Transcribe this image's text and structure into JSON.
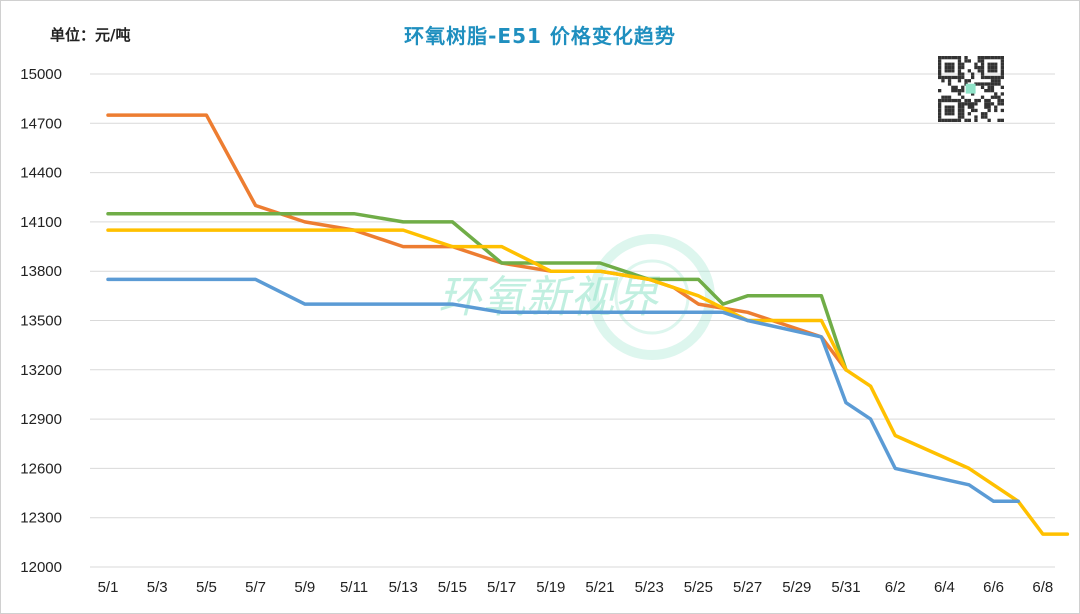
{
  "chart_data": {
    "type": "line",
    "title": "环氧树脂-E51 价格变化趋势",
    "unit_label": "单位：元/吨",
    "ylim": [
      12000,
      15000
    ],
    "yticks": [
      12000,
      12300,
      12600,
      12900,
      13200,
      13500,
      13800,
      14100,
      14400,
      14700,
      15000
    ],
    "x_tick_labels": [
      "5/1",
      "5/3",
      "5/5",
      "5/7",
      "5/9",
      "5/11",
      "5/13",
      "5/15",
      "5/17",
      "5/19",
      "5/21",
      "5/23",
      "5/25",
      "5/27",
      "5/29",
      "5/31",
      "6/2",
      "6/4",
      "6/6",
      "6/8"
    ],
    "grid": "horizontal",
    "legend": "none",
    "watermark": "环氧新视界",
    "series": [
      {
        "color": "#ed7d31",
        "points": [
          [
            "5/1",
            14750
          ],
          [
            "5/5",
            14750
          ],
          [
            "5/7",
            14200
          ],
          [
            "5/9",
            14100
          ],
          [
            "5/11",
            14050
          ],
          [
            "5/13",
            13950
          ],
          [
            "5/15",
            13950
          ],
          [
            "5/17",
            13850
          ],
          [
            "5/19",
            13800
          ],
          [
            "5/21",
            13800
          ],
          [
            "5/23",
            13750
          ],
          [
            "5/24",
            13700
          ],
          [
            "5/25",
            13600
          ],
          [
            "5/27",
            13550
          ],
          [
            "5/28",
            13500
          ],
          [
            "5/30",
            13400
          ],
          [
            "5/31",
            13200
          ]
        ]
      },
      {
        "color": "#70ad47",
        "points": [
          [
            "5/1",
            14150
          ],
          [
            "5/7",
            14150
          ],
          [
            "5/11",
            14150
          ],
          [
            "5/13",
            14100
          ],
          [
            "5/15",
            14100
          ],
          [
            "5/17",
            13850
          ],
          [
            "5/21",
            13850
          ],
          [
            "5/23",
            13750
          ],
          [
            "5/25",
            13750
          ],
          [
            "5/26",
            13600
          ],
          [
            "5/27",
            13650
          ],
          [
            "5/30",
            13650
          ],
          [
            "5/31",
            13200
          ]
        ]
      },
      {
        "color": "#ffc000",
        "points": [
          [
            "5/1",
            14050
          ],
          [
            "5/13",
            14050
          ],
          [
            "5/15",
            13950
          ],
          [
            "5/17",
            13950
          ],
          [
            "5/19",
            13800
          ],
          [
            "5/21",
            13800
          ],
          [
            "5/23",
            13750
          ],
          [
            "5/25",
            13650
          ],
          [
            "5/27",
            13500
          ],
          [
            "5/30",
            13500
          ],
          [
            "5/31",
            13200
          ],
          [
            "6/1",
            13100
          ],
          [
            "6/2",
            12800
          ],
          [
            "6/5",
            12600
          ],
          [
            "6/7",
            12400
          ],
          [
            "6/8",
            12200
          ],
          [
            "6/9",
            12200
          ]
        ]
      },
      {
        "color": "#5b9bd5",
        "points": [
          [
            "5/1",
            13750
          ],
          [
            "5/7",
            13750
          ],
          [
            "5/9",
            13600
          ],
          [
            "5/13",
            13600
          ],
          [
            "5/15",
            13600
          ],
          [
            "5/17",
            13550
          ],
          [
            "5/26",
            13550
          ],
          [
            "5/27",
            13500
          ],
          [
            "5/30",
            13400
          ],
          [
            "5/31",
            13000
          ],
          [
            "6/1",
            12900
          ],
          [
            "6/2",
            12600
          ],
          [
            "6/5",
            12500
          ],
          [
            "6/6",
            12400
          ],
          [
            "6/7",
            12400
          ]
        ]
      }
    ]
  }
}
